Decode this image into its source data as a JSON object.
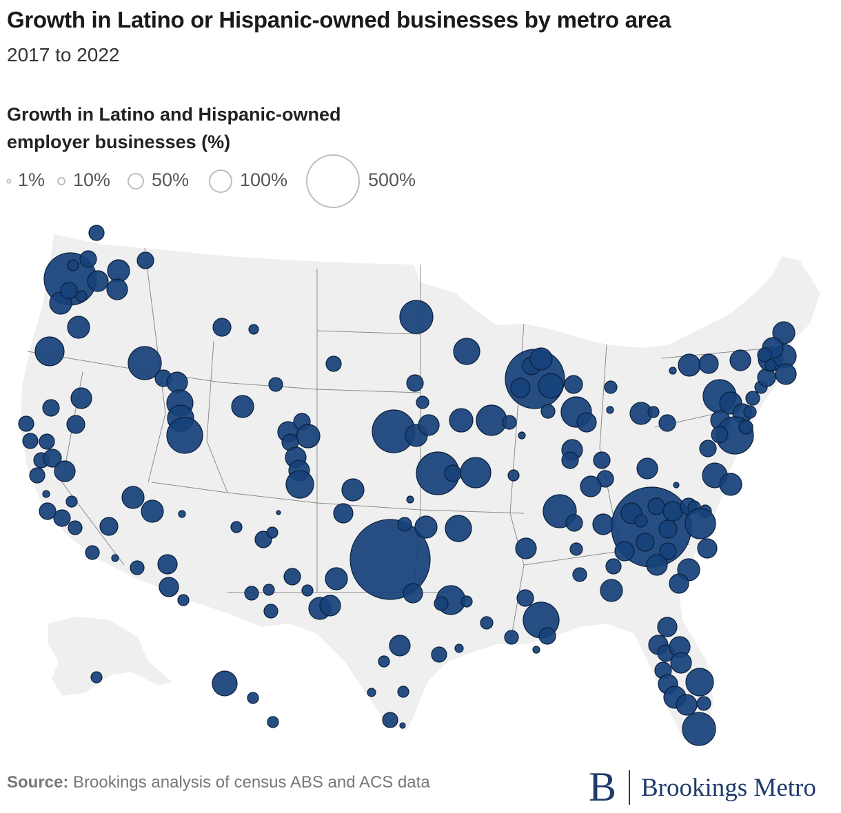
{
  "header": {
    "title": "Growth in Latino or Hispanic-owned businesses by metro area",
    "subtitle": "2017 to 2022"
  },
  "legend": {
    "title": "Growth in Latino and Hispanic-owned employer businesses (%)",
    "items": [
      {
        "label": "1%",
        "value": 1
      },
      {
        "label": "10%",
        "value": 10
      },
      {
        "label": "50%",
        "value": 50
      },
      {
        "label": "100%",
        "value": 100
      },
      {
        "label": "500%",
        "value": 500
      }
    ]
  },
  "colors": {
    "land": "#efefef",
    "state_border": "#8a8a8a",
    "bubble_fill": "#17427a",
    "bubble_stroke": "#0b1f3d",
    "legend_stroke": "#bdbdbd",
    "brand": "#1f3a6b"
  },
  "footer": {
    "source_label": "Source:",
    "source_text": "Brookings analysis of census ABS and ACS data",
    "logo_mark": "B",
    "logo_text": "Brookings Metro"
  }
}
